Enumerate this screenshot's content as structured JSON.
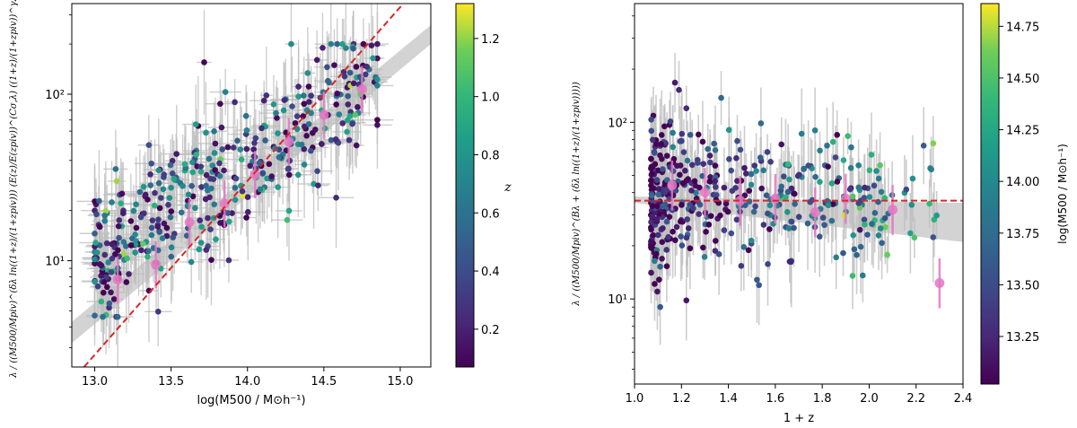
{
  "chart_data": [
    {
      "type": "scatter",
      "name": "richness-vs-mass",
      "xlabel": "log(M500 / M⊙h⁻¹)",
      "ylabel": "λ / ((M500/Mpiv)^(δλ ln((1+z)/(1+zpiv))) (E(z)/E(zpiv))^(Cσ,λ) ((1+z)/(1+zpiv))^γλ)",
      "xlim": [
        12.85,
        15.2
      ],
      "ylim": [
        2.3,
        350
      ],
      "yscale": "log",
      "xticks": [
        "13.0",
        "13.5",
        "14.0",
        "14.5",
        "15.0"
      ],
      "yticks": [
        "10¹",
        "10²"
      ],
      "colorbar": {
        "label": "z",
        "range": [
          0.07,
          1.32
        ],
        "ticks": [
          "0.2",
          "0.4",
          "0.6",
          "0.8",
          "1.0",
          "1.2"
        ],
        "colormap": "viridis"
      },
      "fit_line": {
        "points": [
          [
            12.93,
            2.3
          ],
          [
            15.02,
            350
          ]
        ],
        "color": "#d62728",
        "style": "dashed"
      },
      "confidence_band": {
        "lower": [
          [
            12.85,
            3.2
          ],
          [
            15.2,
            200
          ]
        ],
        "upper": [
          [
            12.85,
            4.3
          ],
          [
            15.2,
            260
          ]
        ],
        "color": "#d3d3d3"
      },
      "binned_points": [
        {
          "x": 13.15,
          "y": 7.7
        },
        {
          "x": 13.4,
          "y": 9.5
        },
        {
          "x": 13.62,
          "y": 17
        },
        {
          "x": 13.85,
          "y": 22
        },
        {
          "x": 14.05,
          "y": 33
        },
        {
          "x": 14.27,
          "y": 52
        },
        {
          "x": 14.5,
          "y": 75
        },
        {
          "x": 14.75,
          "y": 107
        }
      ],
      "binned_color": "#e377c2",
      "scatter": {
        "n_points": 420,
        "x_range": [
          13.0,
          14.85
        ],
        "y_range": [
          4.6,
          200
        ],
        "note": "individual clusters with error bars, colored by z"
      }
    },
    {
      "type": "scatter",
      "name": "residual-vs-redshift",
      "xlabel": "1 + z",
      "ylabel": "λ / ((M500/Mpiv)^(Bλ + (δλ ln((1+z)/(1+zpiv)))))",
      "xlim": [
        1.0,
        2.4
      ],
      "ylim": [
        3.3,
        470
      ],
      "yscale": "log",
      "xticks": [
        "1.0",
        "1.2",
        "1.4",
        "1.6",
        "1.8",
        "2.0",
        "2.2",
        "2.4"
      ],
      "yticks": [
        "10¹",
        "10²"
      ],
      "colorbar": {
        "label": "log(M500 / M⊙h⁻¹)",
        "range": [
          13.02,
          14.86
        ],
        "ticks": [
          "13.25",
          "13.50",
          "13.75",
          "14.00",
          "14.25",
          "14.50",
          "14.75"
        ],
        "colormap": "viridis"
      },
      "fit_line": {
        "y": 36,
        "color": "#d62728",
        "style": "dashed"
      },
      "confidence_band": {
        "lower": [
          [
            1.0,
            35
          ],
          [
            2.4,
            21
          ]
        ],
        "upper": [
          [
            1.0,
            38
          ],
          [
            2.4,
            35
          ]
        ],
        "color": "#d3d3d3"
      },
      "binned_points": [
        {
          "x": 1.16,
          "y": 44
        },
        {
          "x": 1.3,
          "y": 40
        },
        {
          "x": 1.45,
          "y": 36
        },
        {
          "x": 1.6,
          "y": 37
        },
        {
          "x": 1.77,
          "y": 31
        },
        {
          "x": 1.9,
          "y": 37
        },
        {
          "x": 2.1,
          "y": 32
        },
        {
          "x": 2.3,
          "y": 12.3
        }
      ],
      "binned_color": "#e377c2",
      "scatter": {
        "n_points": 430,
        "x_range": [
          1.07,
          2.3
        ],
        "y_range": [
          6,
          220
        ],
        "note": "individual clusters with error bars, colored by log mass"
      }
    }
  ]
}
